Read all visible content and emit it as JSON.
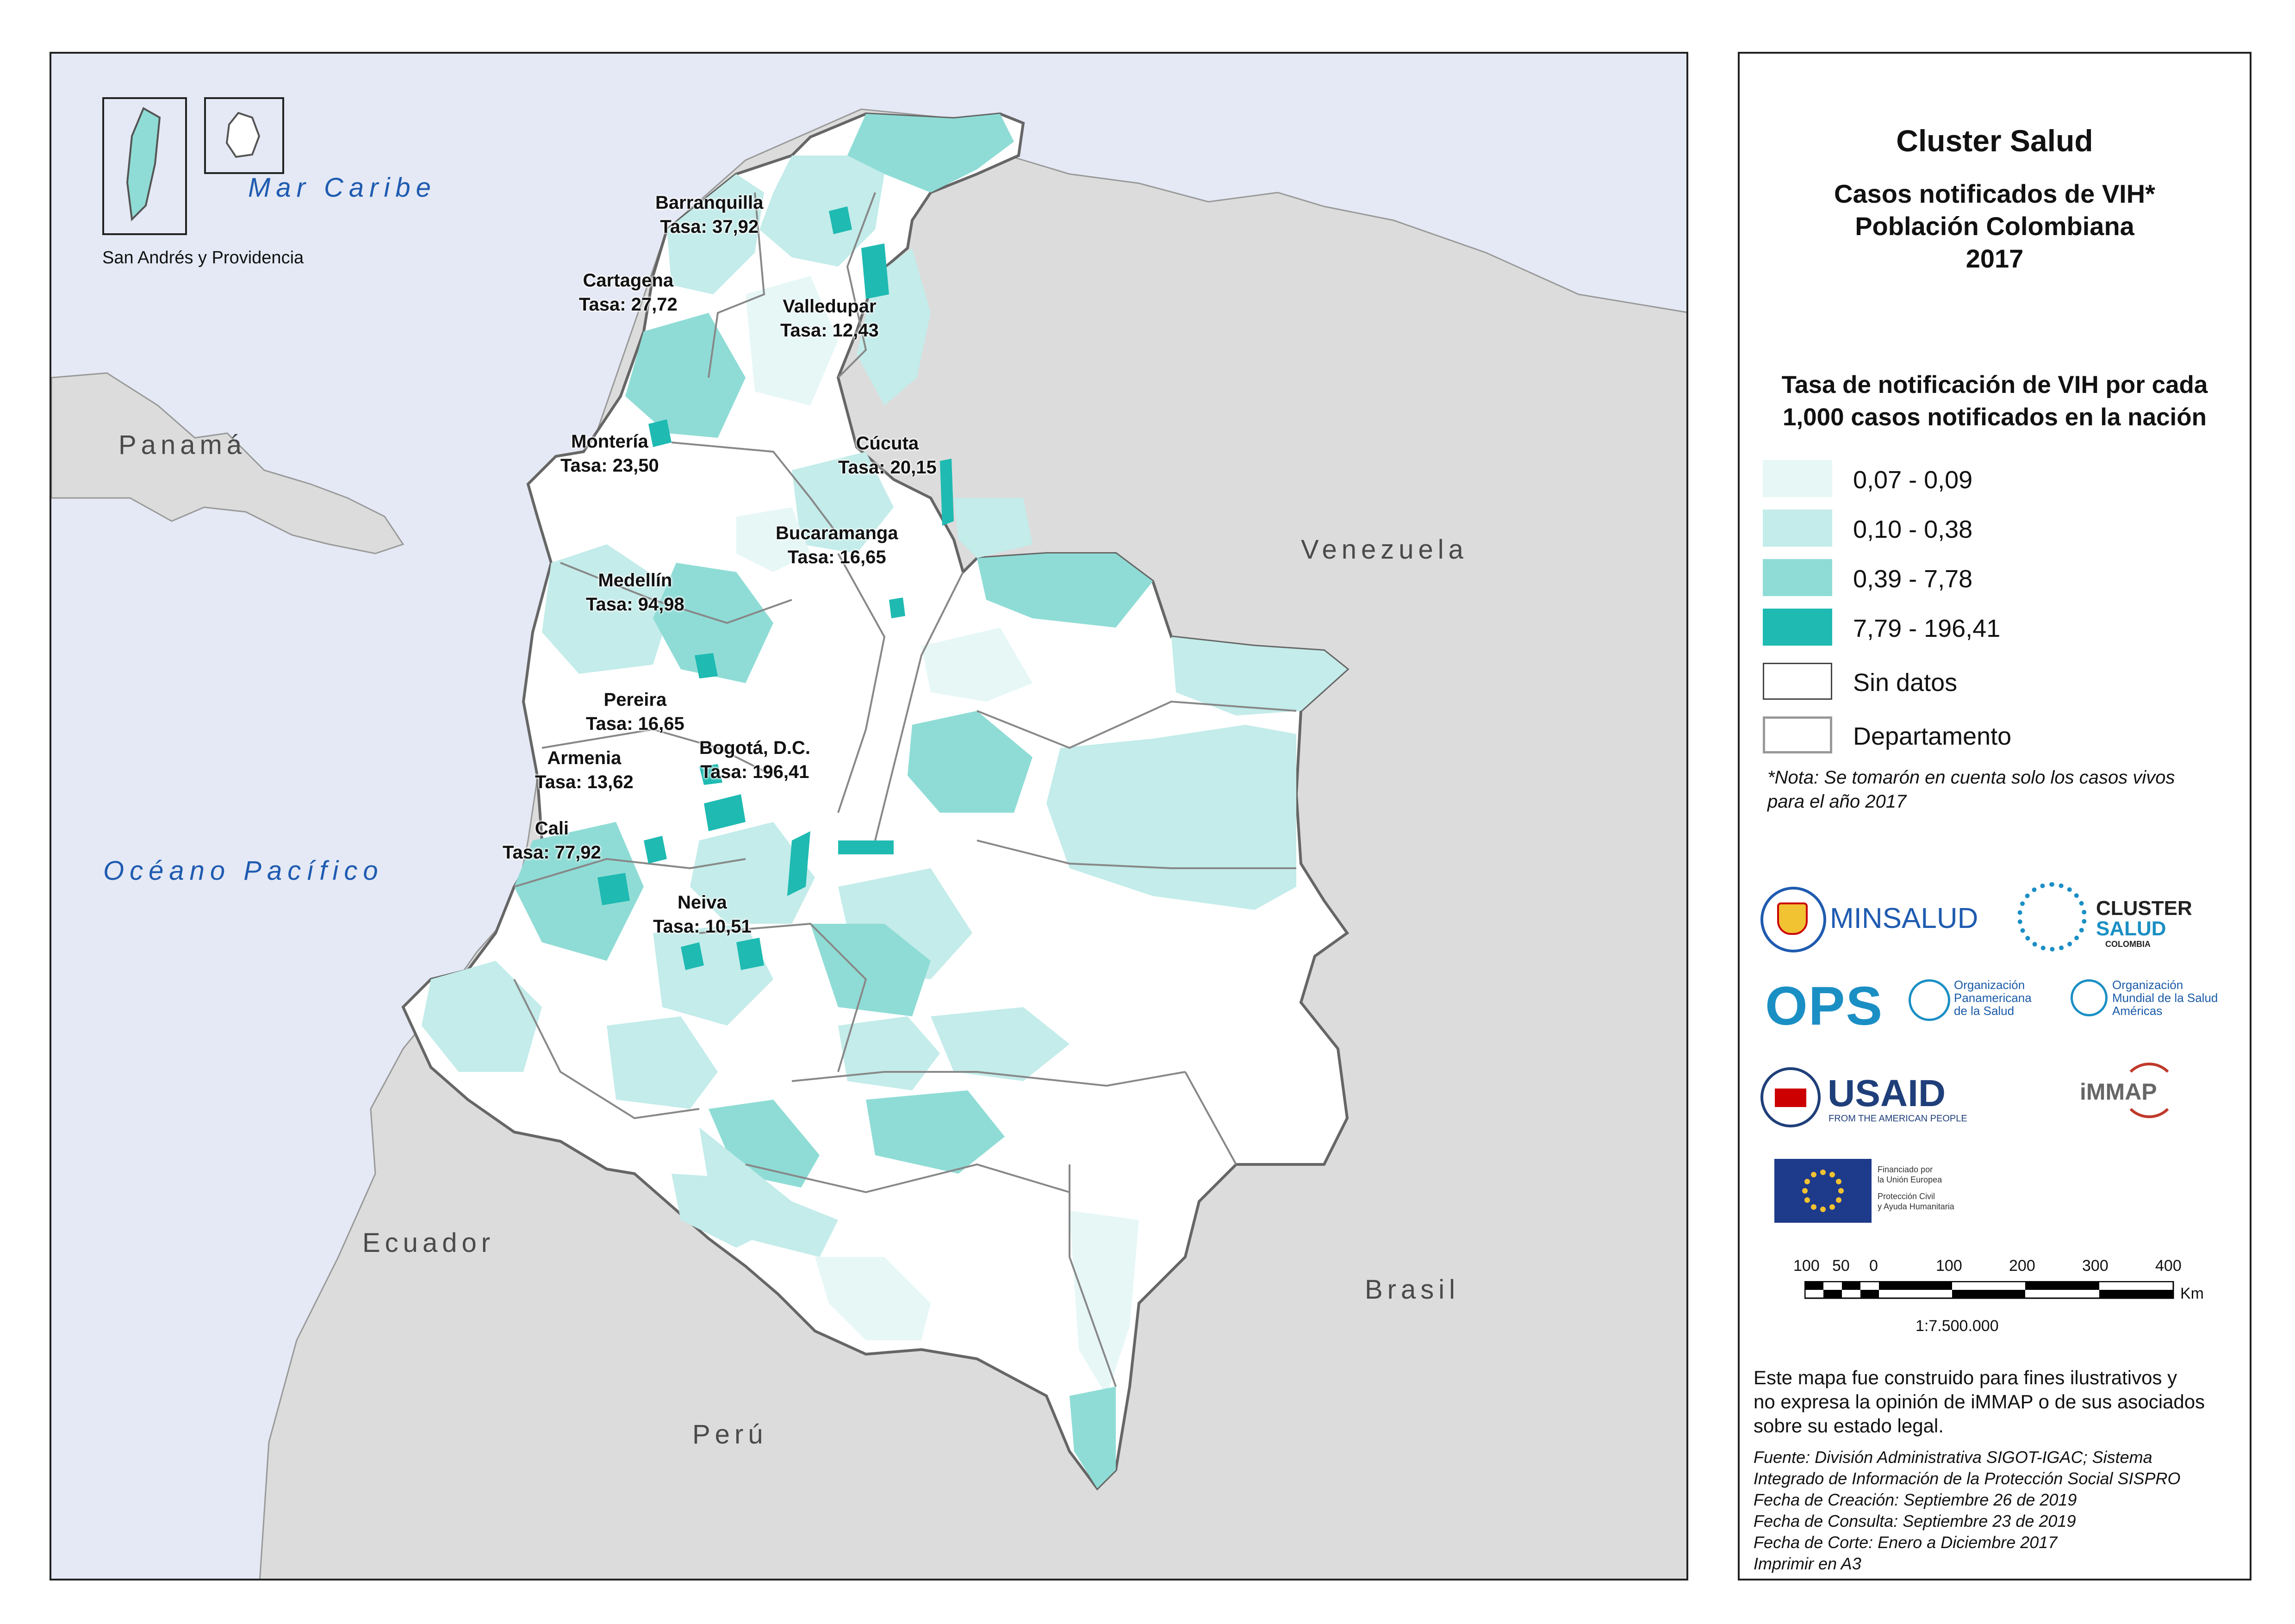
{
  "map": {
    "seas": {
      "caribbean": "Mar Caribe",
      "pacific": "Océano Pacífico"
    },
    "countries": {
      "panama": "Panamá",
      "venezuela": "Venezuela",
      "ecuador": "Ecuador",
      "peru": "Perú",
      "brasil": "Brasil"
    },
    "inset_label": "San Andrés y Providencia",
    "cities": [
      {
        "name": "Barranquilla",
        "rate": "Tasa: 37,92"
      },
      {
        "name": "Cartagena",
        "rate": "Tasa: 27,72"
      },
      {
        "name": "Valledupar",
        "rate": "Tasa: 12,43"
      },
      {
        "name": "Montería",
        "rate": "Tasa: 23,50"
      },
      {
        "name": "Cúcuta",
        "rate": "Tasa: 20,15"
      },
      {
        "name": "Bucaramanga",
        "rate": "Tasa: 16,65"
      },
      {
        "name": "Medellín",
        "rate": "Tasa: 94,98"
      },
      {
        "name": "Pereira",
        "rate": "Tasa: 16,65"
      },
      {
        "name": "Armenia",
        "rate": "Tasa: 13,62"
      },
      {
        "name": "Bogotá, D.C.",
        "rate": "Tasa: 196,41"
      },
      {
        "name": "Cali",
        "rate": "Tasa: 77,92"
      },
      {
        "name": "Neiva",
        "rate": "Tasa: 10,51"
      }
    ]
  },
  "legend": {
    "org": "Cluster Salud",
    "title_line1": "Casos notificados de VIH*",
    "title_line2": "Población Colombiana",
    "year": "2017",
    "subtitle_line1": "Tasa de notificación de VIH por cada",
    "subtitle_line2": "1,000 casos notificados en la nación",
    "classes": [
      {
        "label": "0,07 - 0,09",
        "color": "#e6f7f6"
      },
      {
        "label": "0,10 - 0,38",
        "color": "#c3ecea"
      },
      {
        "label": "0,39 - 7,78",
        "color": "#8fdcd6"
      },
      {
        "label": "7,79 - 196,41",
        "color": "#1fbab2"
      },
      {
        "label": "Sin datos",
        "color": "#ffffff"
      },
      {
        "label": "Departamento",
        "color": "#ffffff"
      }
    ],
    "note_line1": "*Nota: Se tomarón en cuenta solo los casos vivos",
    "note_line2": "para el año 2017"
  },
  "logos": {
    "minsalud": "MINSALUD",
    "cluster_1": "CLUSTER",
    "cluster_2": "SALUD",
    "cluster_3": "COLOMBIA",
    "ops": "OPS",
    "ops_sub_1": "Organización",
    "ops_sub_2": "Panamericana",
    "ops_sub_3": "de la Salud",
    "oms_sub_1": "Organización",
    "oms_sub_2": "Mundial de la Salud",
    "oms_sub_3": "Américas",
    "usaid": "USAID",
    "usaid_sub": "FROM THE AMERICAN PEOPLE",
    "immap": "iMMAP",
    "eu_1": "Financiado por",
    "eu_2": "la Unión Europea",
    "eu_3": "Protección Civil",
    "eu_4": "y Ayuda Humanitaria"
  },
  "scale": {
    "ticks": [
      "100",
      "50",
      "0",
      "100",
      "200",
      "300",
      "400"
    ],
    "unit": "Km",
    "ratio": "1:7.500.000"
  },
  "disclaimer": [
    "Este mapa fue construido para fines ilustrativos y",
    "no expresa la opinión de iMMAP o de sus asociados",
    "sobre su estado legal."
  ],
  "sources": [
    "Fuente: División Administrativa SIGOT-IGAC; Sistema",
    "Integrado de Información de la Protección Social SISPRO",
    "Fecha de Creación: Septiembre 26 de 2019",
    "Fecha de Consulta: Septiembre 23 de 2019",
    "Fecha de Corte: Enero a Diciembre 2017",
    "Imprimir en A3"
  ]
}
